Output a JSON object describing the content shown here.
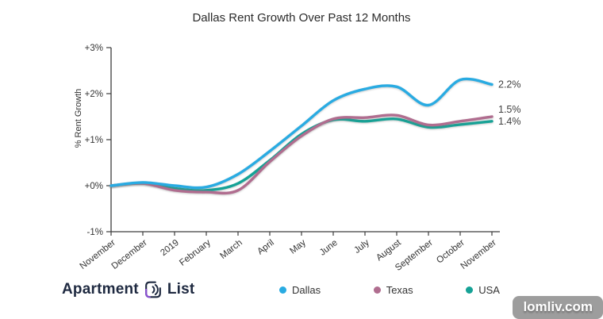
{
  "title": "Dallas Rent Growth Over Past 12 Months",
  "chart_data": {
    "type": "line",
    "x": [
      "November",
      "December",
      "2019",
      "February",
      "March",
      "April",
      "May",
      "June",
      "July",
      "August",
      "September",
      "October",
      "November"
    ],
    "series": [
      {
        "name": "Dallas",
        "color": "#29abe2",
        "values": [
          0,
          0.07,
          0,
          -0.03,
          0.25,
          0.75,
          1.3,
          1.85,
          2.1,
          2.15,
          1.75,
          2.3,
          2.2
        ],
        "end_label": "2.2%"
      },
      {
        "name": "Texas",
        "color": "#b06d8f",
        "values": [
          0,
          0.05,
          -0.1,
          -0.14,
          -0.1,
          0.52,
          1.08,
          1.45,
          1.48,
          1.53,
          1.32,
          1.4,
          1.5
        ],
        "end_label": "1.5%"
      },
      {
        "name": "USA",
        "color": "#16a296",
        "values": [
          0,
          0.05,
          -0.06,
          -0.1,
          0.05,
          0.55,
          1.12,
          1.43,
          1.4,
          1.45,
          1.27,
          1.33,
          1.4
        ],
        "end_label": "1.4%"
      }
    ],
    "ylabel": "% Rent Growth",
    "xlabel": "",
    "yticks": [
      {
        "label": "+3%",
        "value": 3
      },
      {
        "label": "+2%",
        "value": 2
      },
      {
        "label": "+1%",
        "value": 1
      },
      {
        "label": "+0%",
        "value": 0
      },
      {
        "label": "-1%",
        "value": -1
      }
    ],
    "ylim": [
      -1,
      3
    ],
    "grid": false,
    "legend_position": "bottom"
  },
  "footer": {
    "brand_word_1": "Apartment",
    "brand_word_2": "List"
  },
  "watermark": "lomliv.com",
  "colors": {
    "axis": "#3d3d3d",
    "tick_label": "#333333",
    "end_label": "#404040",
    "title": "#2b2b2b",
    "brand_navy": "#1e2940",
    "brand_purple": "#8a4fd3",
    "watermark_bg": "#9d9d9d"
  }
}
